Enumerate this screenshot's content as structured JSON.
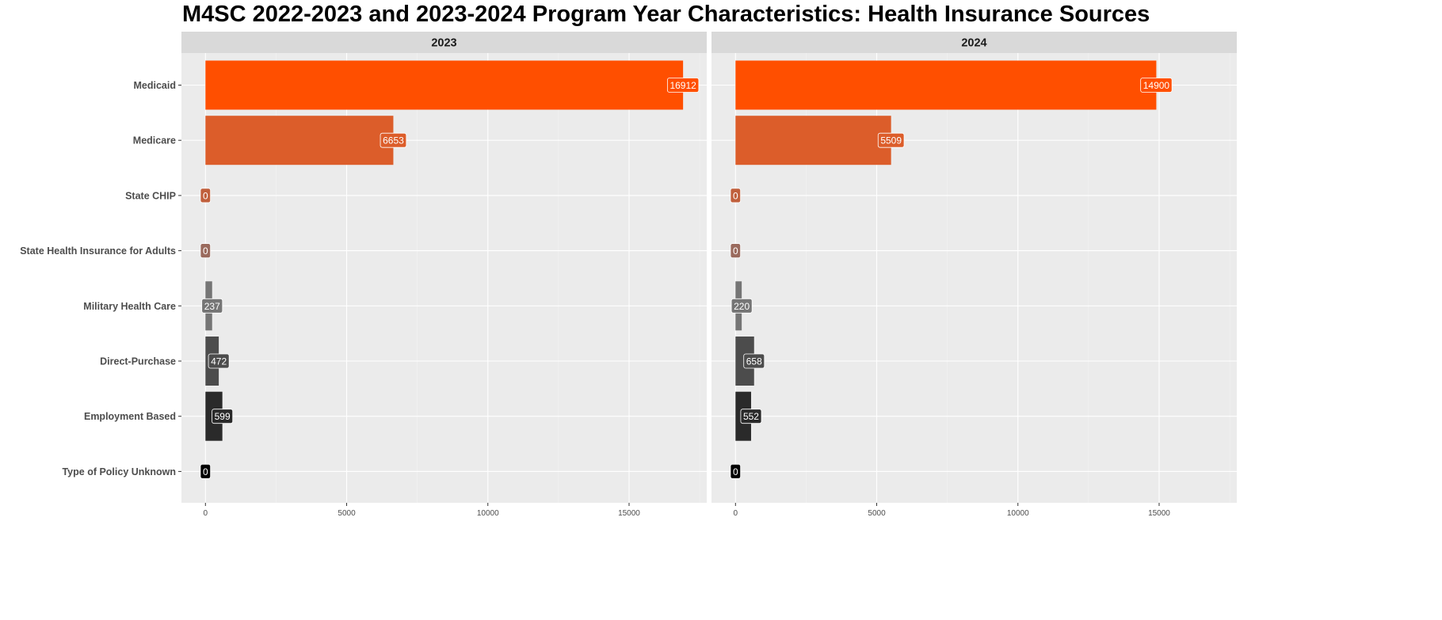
{
  "chart_data": {
    "type": "bar",
    "orientation": "horizontal",
    "title": "M4SC 2022-2023 and 2023-2024 Program Year Characteristics: Health Insurance Sources",
    "categories": [
      "Medicaid",
      "Medicare",
      "State CHIP",
      "State Health Insurance for Adults",
      "Military Health Care",
      "Direct-Purchase",
      "Employment Based",
      "Type of Policy Unknown"
    ],
    "bar_colors": [
      "#ff4f00",
      "#dc5d2a",
      "#c05f3c",
      "#9a6a5d",
      "#757575",
      "#4c4c4c",
      "#2a2a2a",
      "#000000"
    ],
    "facets": [
      {
        "label": "2023",
        "values": [
          16912,
          6653,
          0,
          0,
          237,
          472,
          599,
          0
        ]
      },
      {
        "label": "2024",
        "values": [
          14900,
          5509,
          0,
          0,
          220,
          658,
          552,
          0
        ]
      }
    ],
    "x_ticks": [
      "0",
      "5000",
      "10000",
      "15000"
    ],
    "xlim": [
      -850,
      17750
    ],
    "grid": true,
    "legend": "none"
  }
}
